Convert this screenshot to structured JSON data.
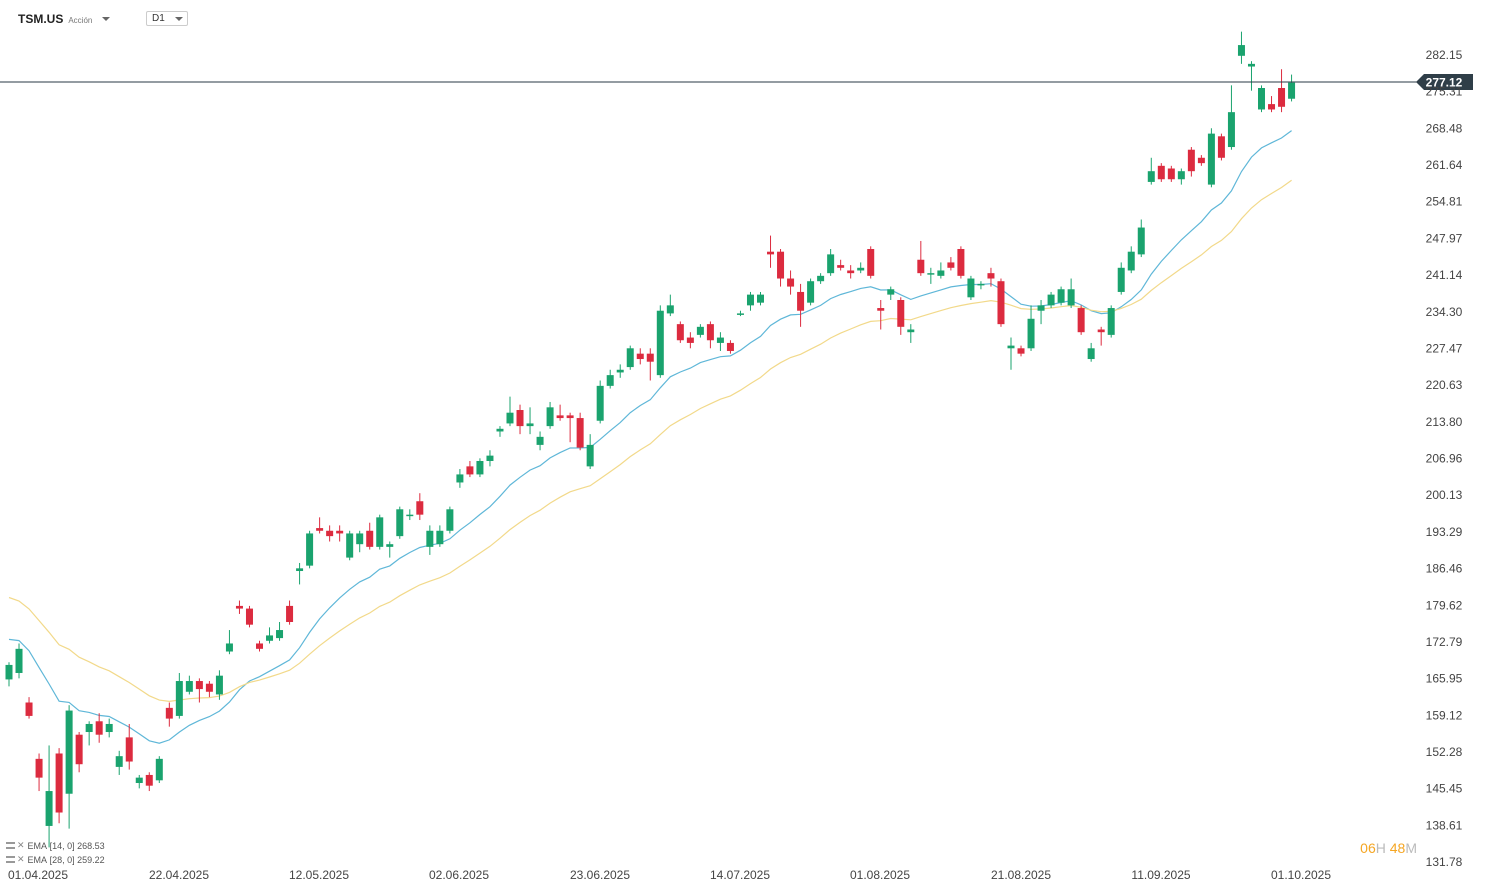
{
  "header": {
    "symbol": "TSM.US",
    "symbol_type": "Acción",
    "timeframe": "D1"
  },
  "indicators": [
    {
      "label": "EMA",
      "params": "[14, 0]",
      "value": "268.53",
      "color": "#5fb7d8"
    },
    {
      "label": "EMA",
      "params": "[28, 0]",
      "value": "259.22",
      "color": "#f2d98a"
    }
  ],
  "countdown": {
    "h_val": "06",
    "h_unit": "H",
    "m_val": "48",
    "m_unit": "M"
  },
  "chart_data": {
    "type": "candlestick",
    "title": "",
    "current_price": "277.12",
    "ylim": [
      131.78,
      288.5
    ],
    "y_ticks": [
      "282.15",
      "275.31",
      "268.48",
      "261.64",
      "254.81",
      "247.97",
      "241.14",
      "234.30",
      "227.47",
      "220.63",
      "213.80",
      "206.96",
      "200.13",
      "193.29",
      "186.46",
      "179.62",
      "172.79",
      "165.95",
      "159.12",
      "152.28",
      "145.45",
      "138.61",
      "131.78"
    ],
    "x_tick_labels": [
      "01.04.2025",
      "22.04.2025",
      "12.05.2025",
      "02.06.2025",
      "23.06.2025",
      "14.07.2025",
      "01.08.2025",
      "21.08.2025",
      "11.09.2025",
      "01.10.2025"
    ],
    "colors": {
      "up": "#1aa36e",
      "down": "#dc2b3f",
      "price_line": "#2a3a45",
      "price_tag": "#2f3e48"
    },
    "candles": [
      {
        "o": 165.8,
        "h": 169.0,
        "l": 164.5,
        "c": 168.5
      },
      {
        "o": 167.0,
        "h": 172.5,
        "l": 166.0,
        "c": 171.5
      },
      {
        "o": 161.5,
        "h": 162.5,
        "l": 158.5,
        "c": 159.0
      },
      {
        "o": 151.0,
        "h": 152.0,
        "l": 145.0,
        "c": 147.5
      },
      {
        "o": 138.5,
        "h": 153.5,
        "l": 134.5,
        "c": 145.0
      },
      {
        "o": 152.0,
        "h": 153.0,
        "l": 139.0,
        "c": 141.0
      },
      {
        "o": 144.5,
        "h": 161.0,
        "l": 138.0,
        "c": 160.0
      },
      {
        "o": 155.5,
        "h": 156.0,
        "l": 148.5,
        "c": 150.0
      },
      {
        "o": 156.0,
        "h": 158.0,
        "l": 153.5,
        "c": 157.5
      },
      {
        "o": 158.0,
        "h": 159.5,
        "l": 154.0,
        "c": 155.5
      },
      {
        "o": 156.0,
        "h": 158.5,
        "l": 155.0,
        "c": 157.5
      },
      {
        "o": 149.5,
        "h": 152.5,
        "l": 148.0,
        "c": 151.5
      },
      {
        "o": 155.0,
        "h": 157.5,
        "l": 149.0,
        "c": 150.5
      },
      {
        "o": 146.5,
        "h": 148.0,
        "l": 145.5,
        "c": 147.5
      },
      {
        "o": 148.0,
        "h": 148.5,
        "l": 145.0,
        "c": 146.0
      },
      {
        "o": 147.0,
        "h": 151.5,
        "l": 146.5,
        "c": 151.0
      },
      {
        "o": 160.5,
        "h": 161.5,
        "l": 157.0,
        "c": 158.5
      },
      {
        "o": 159.0,
        "h": 167.0,
        "l": 158.5,
        "c": 165.5
      },
      {
        "o": 163.5,
        "h": 166.5,
        "l": 163.0,
        "c": 165.5
      },
      {
        "o": 165.5,
        "h": 166.0,
        "l": 161.5,
        "c": 164.0
      },
      {
        "o": 165.0,
        "h": 165.5,
        "l": 162.5,
        "c": 163.5
      },
      {
        "o": 163.0,
        "h": 167.5,
        "l": 162.0,
        "c": 166.5
      },
      {
        "o": 171.0,
        "h": 175.0,
        "l": 170.5,
        "c": 172.5
      },
      {
        "o": 179.5,
        "h": 180.5,
        "l": 178.0,
        "c": 179.0
      },
      {
        "o": 179.0,
        "h": 179.5,
        "l": 175.5,
        "c": 176.0
      },
      {
        "o": 172.5,
        "h": 173.0,
        "l": 171.0,
        "c": 171.5
      },
      {
        "o": 173.0,
        "h": 175.5,
        "l": 172.5,
        "c": 174.0
      },
      {
        "o": 173.5,
        "h": 176.5,
        "l": 173.0,
        "c": 175.0
      },
      {
        "o": 179.5,
        "h": 180.5,
        "l": 176.0,
        "c": 176.5
      },
      {
        "o": 186.0,
        "h": 187.5,
        "l": 183.5,
        "c": 186.5
      },
      {
        "o": 187.0,
        "h": 193.5,
        "l": 186.5,
        "c": 193.0
      },
      {
        "o": 194.0,
        "h": 196.0,
        "l": 193.0,
        "c": 193.5
      },
      {
        "o": 193.5,
        "h": 194.5,
        "l": 191.5,
        "c": 192.5
      },
      {
        "o": 193.5,
        "h": 194.5,
        "l": 191.5,
        "c": 193.0
      },
      {
        "o": 188.5,
        "h": 193.5,
        "l": 188.0,
        "c": 193.0
      },
      {
        "o": 191.0,
        "h": 193.5,
        "l": 189.5,
        "c": 193.0
      },
      {
        "o": 193.5,
        "h": 195.0,
        "l": 190.0,
        "c": 190.5
      },
      {
        "o": 190.5,
        "h": 196.5,
        "l": 190.0,
        "c": 196.0
      },
      {
        "o": 190.5,
        "h": 191.5,
        "l": 188.5,
        "c": 191.0
      },
      {
        "o": 192.5,
        "h": 198.0,
        "l": 192.0,
        "c": 197.5
      },
      {
        "o": 196.5,
        "h": 197.5,
        "l": 195.5,
        "c": 196.5
      },
      {
        "o": 199.0,
        "h": 200.5,
        "l": 195.5,
        "c": 196.5
      },
      {
        "o": 190.5,
        "h": 194.5,
        "l": 189.0,
        "c": 193.5
      },
      {
        "o": 191.0,
        "h": 194.5,
        "l": 190.5,
        "c": 193.5
      },
      {
        "o": 193.5,
        "h": 198.0,
        "l": 193.0,
        "c": 197.5
      },
      {
        "o": 202.5,
        "h": 205.0,
        "l": 201.5,
        "c": 204.0
      },
      {
        "o": 205.5,
        "h": 206.5,
        "l": 203.5,
        "c": 204.0
      },
      {
        "o": 204.0,
        "h": 207.0,
        "l": 203.5,
        "c": 206.5
      },
      {
        "o": 206.5,
        "h": 208.5,
        "l": 205.5,
        "c": 207.5
      },
      {
        "o": 212.0,
        "h": 213.0,
        "l": 211.0,
        "c": 212.5
      },
      {
        "o": 213.5,
        "h": 218.5,
        "l": 213.0,
        "c": 215.5
      },
      {
        "o": 216.0,
        "h": 217.0,
        "l": 211.5,
        "c": 213.0
      },
      {
        "o": 213.0,
        "h": 216.5,
        "l": 211.5,
        "c": 213.5
      },
      {
        "o": 209.5,
        "h": 212.0,
        "l": 208.5,
        "c": 211.0
      },
      {
        "o": 213.0,
        "h": 217.5,
        "l": 212.5,
        "c": 216.5
      },
      {
        "o": 215.0,
        "h": 217.0,
        "l": 214.0,
        "c": 214.5
      },
      {
        "o": 215.0,
        "h": 215.5,
        "l": 210.0,
        "c": 214.5
      },
      {
        "o": 214.5,
        "h": 215.5,
        "l": 208.5,
        "c": 209.0
      },
      {
        "o": 205.5,
        "h": 211.5,
        "l": 205.0,
        "c": 209.5
      },
      {
        "o": 214.0,
        "h": 221.5,
        "l": 213.5,
        "c": 220.5
      },
      {
        "o": 220.5,
        "h": 223.5,
        "l": 220.0,
        "c": 222.5
      },
      {
        "o": 223.0,
        "h": 224.5,
        "l": 222.0,
        "c": 223.5
      },
      {
        "o": 224.0,
        "h": 228.0,
        "l": 223.5,
        "c": 227.5
      },
      {
        "o": 226.5,
        "h": 227.5,
        "l": 224.5,
        "c": 225.5
      },
      {
        "o": 226.5,
        "h": 227.5,
        "l": 221.5,
        "c": 225.0
      },
      {
        "o": 222.5,
        "h": 235.5,
        "l": 222.0,
        "c": 234.5
      },
      {
        "o": 234.0,
        "h": 237.5,
        "l": 233.5,
        "c": 235.5
      },
      {
        "o": 232.0,
        "h": 232.5,
        "l": 228.5,
        "c": 229.0
      },
      {
        "o": 229.5,
        "h": 230.5,
        "l": 227.5,
        "c": 228.5
      },
      {
        "o": 230.0,
        "h": 232.0,
        "l": 229.5,
        "c": 231.5
      },
      {
        "o": 232.0,
        "h": 232.5,
        "l": 227.5,
        "c": 229.0
      },
      {
        "o": 228.5,
        "h": 230.5,
        "l": 227.0,
        "c": 229.5
      },
      {
        "o": 228.5,
        "h": 229.0,
        "l": 226.5,
        "c": 227.0
      },
      {
        "o": 234.0,
        "h": 234.5,
        "l": 233.5,
        "c": 234.0
      },
      {
        "o": 235.5,
        "h": 238.0,
        "l": 234.5,
        "c": 237.5
      },
      {
        "o": 236.0,
        "h": 238.0,
        "l": 235.5,
        "c": 237.5
      },
      {
        "o": 245.5,
        "h": 248.5,
        "l": 242.5,
        "c": 245.0
      },
      {
        "o": 245.5,
        "h": 246.0,
        "l": 239.0,
        "c": 240.5
      },
      {
        "o": 240.5,
        "h": 242.0,
        "l": 237.5,
        "c": 239.0
      },
      {
        "o": 238.0,
        "h": 239.5,
        "l": 231.5,
        "c": 234.5
      },
      {
        "o": 236.0,
        "h": 240.5,
        "l": 235.5,
        "c": 240.0
      },
      {
        "o": 240.0,
        "h": 241.5,
        "l": 239.5,
        "c": 241.0
      },
      {
        "o": 241.5,
        "h": 246.0,
        "l": 241.0,
        "c": 245.0
      },
      {
        "o": 243.0,
        "h": 244.0,
        "l": 242.0,
        "c": 242.5
      },
      {
        "o": 242.0,
        "h": 243.0,
        "l": 240.5,
        "c": 241.5
      },
      {
        "o": 242.0,
        "h": 243.5,
        "l": 241.5,
        "c": 242.5
      },
      {
        "o": 246.0,
        "h": 246.5,
        "l": 240.5,
        "c": 241.0
      },
      {
        "o": 235.0,
        "h": 236.5,
        "l": 231.0,
        "c": 234.5
      },
      {
        "o": 237.5,
        "h": 239.0,
        "l": 236.5,
        "c": 238.5
      },
      {
        "o": 236.5,
        "h": 237.0,
        "l": 230.0,
        "c": 231.5
      },
      {
        "o": 230.5,
        "h": 232.0,
        "l": 228.5,
        "c": 231.0
      },
      {
        "o": 244.0,
        "h": 247.5,
        "l": 241.0,
        "c": 241.5
      },
      {
        "o": 241.5,
        "h": 242.5,
        "l": 239.5,
        "c": 241.5
      },
      {
        "o": 241.0,
        "h": 243.5,
        "l": 240.5,
        "c": 242.0
      },
      {
        "o": 243.5,
        "h": 244.5,
        "l": 242.0,
        "c": 242.5
      },
      {
        "o": 246.0,
        "h": 246.5,
        "l": 240.5,
        "c": 241.0
      },
      {
        "o": 237.0,
        "h": 241.0,
        "l": 236.5,
        "c": 240.5
      },
      {
        "o": 239.5,
        "h": 240.0,
        "l": 238.5,
        "c": 239.5
      },
      {
        "o": 241.5,
        "h": 242.5,
        "l": 239.0,
        "c": 240.5
      },
      {
        "o": 240.0,
        "h": 240.5,
        "l": 231.5,
        "c": 232.0
      },
      {
        "o": 227.5,
        "h": 229.5,
        "l": 223.5,
        "c": 228.0
      },
      {
        "o": 227.5,
        "h": 228.0,
        "l": 226.0,
        "c": 226.5
      },
      {
        "o": 227.5,
        "h": 235.5,
        "l": 227.0,
        "c": 233.0
      },
      {
        "o": 234.5,
        "h": 236.5,
        "l": 232.0,
        "c": 235.5
      },
      {
        "o": 235.5,
        "h": 238.0,
        "l": 235.0,
        "c": 237.5
      },
      {
        "o": 236.0,
        "h": 239.0,
        "l": 235.5,
        "c": 238.5
      },
      {
        "o": 235.5,
        "h": 240.5,
        "l": 235.0,
        "c": 238.5
      },
      {
        "o": 235.0,
        "h": 235.5,
        "l": 230.0,
        "c": 230.5
      },
      {
        "o": 225.5,
        "h": 228.5,
        "l": 225.0,
        "c": 227.5
      },
      {
        "o": 231.0,
        "h": 231.5,
        "l": 228.0,
        "c": 230.5
      },
      {
        "o": 230.0,
        "h": 235.5,
        "l": 229.5,
        "c": 235.0
      },
      {
        "o": 238.0,
        "h": 243.5,
        "l": 237.5,
        "c": 242.5
      },
      {
        "o": 242.0,
        "h": 246.5,
        "l": 241.5,
        "c": 245.5
      },
      {
        "o": 245.0,
        "h": 251.5,
        "l": 244.5,
        "c": 250.0
      },
      {
        "o": 258.5,
        "h": 263.0,
        "l": 258.0,
        "c": 260.5
      },
      {
        "o": 261.5,
        "h": 262.0,
        "l": 258.5,
        "c": 259.0
      },
      {
        "o": 261.0,
        "h": 261.5,
        "l": 258.5,
        "c": 259.0
      },
      {
        "o": 259.0,
        "h": 261.0,
        "l": 258.0,
        "c": 260.5
      },
      {
        "o": 264.5,
        "h": 265.0,
        "l": 259.5,
        "c": 260.5
      },
      {
        "o": 263.0,
        "h": 263.5,
        "l": 261.5,
        "c": 262.0
      },
      {
        "o": 258.0,
        "h": 268.5,
        "l": 257.5,
        "c": 267.5
      },
      {
        "o": 267.0,
        "h": 267.5,
        "l": 262.5,
        "c": 263.0
      },
      {
        "o": 265.0,
        "h": 276.5,
        "l": 264.5,
        "c": 271.5
      },
      {
        "o": 282.0,
        "h": 286.5,
        "l": 280.5,
        "c": 284.0
      },
      {
        "o": 280.0,
        "h": 281.0,
        "l": 275.5,
        "c": 280.5
      },
      {
        "o": 272.0,
        "h": 276.5,
        "l": 271.5,
        "c": 276.0
      },
      {
        "o": 273.0,
        "h": 274.5,
        "l": 271.5,
        "c": 272.0
      },
      {
        "o": 276.0,
        "h": 279.5,
        "l": 271.5,
        "c": 272.5
      },
      {
        "o": 274.0,
        "h": 278.5,
        "l": 273.5,
        "c": 277.0
      }
    ]
  }
}
